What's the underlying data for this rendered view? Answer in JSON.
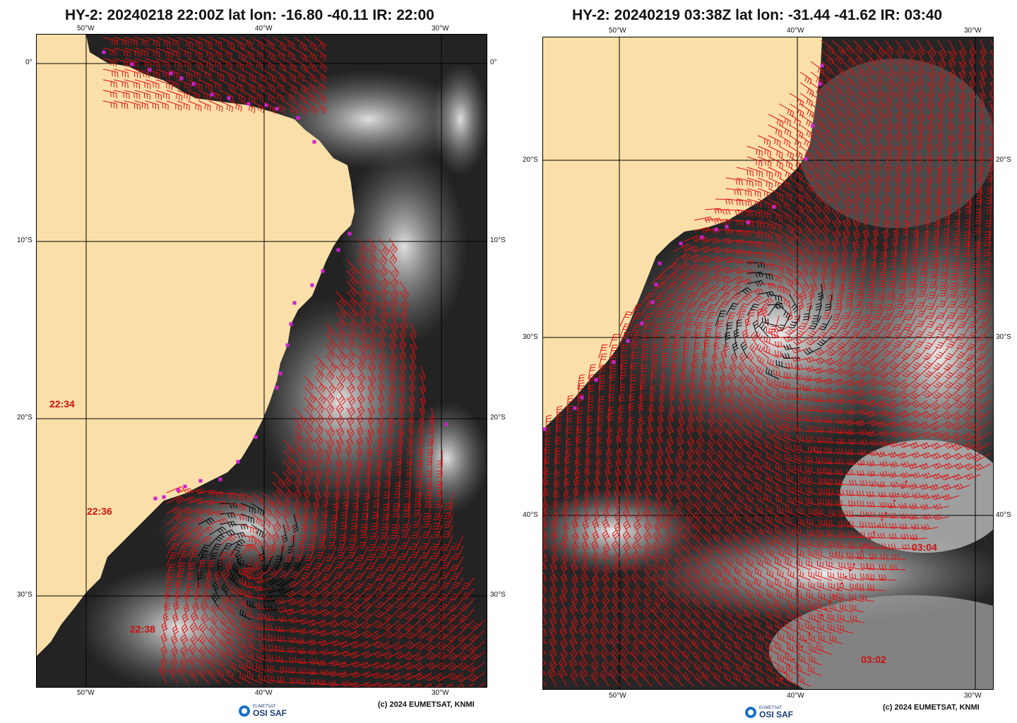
{
  "colors": {
    "land": "#fadfa8",
    "barb": "#e01010",
    "barb_rain": "#000000",
    "coast_marker": "#d020d0",
    "pass_time": "#cc1111"
  },
  "panels": [
    {
      "title": "HY-2: 20240218 22:00Z lat lon: -16.80 -40.11 IR: 22:00",
      "top_labels": [
        "50°W",
        "40°W",
        "30°W"
      ],
      "bottom_labels": [
        "50°W",
        "40°W",
        "30°W"
      ],
      "left_labels": [
        "0°",
        "10°S",
        "20°S",
        "30°S"
      ],
      "right_labels": [
        "0°",
        "10°S",
        "20°S",
        "30°S"
      ],
      "pass_times": [
        "22:34",
        "22:36",
        "22:38"
      ],
      "credit": "(c) 2024 EUMETSAT, KNMI",
      "logo": {
        "org": "EUMETSAT",
        "name": "OSI SAF"
      }
    },
    {
      "title": "HY-2: 20240219 03:38Z lat lon: -31.44 -41.62 IR: 03:40",
      "top_labels": [
        "50°W",
        "40°W",
        "30°W"
      ],
      "bottom_labels": [
        "50°W",
        "40°W",
        "30°W"
      ],
      "left_labels": [
        "20°S",
        "30°S",
        "40°S"
      ],
      "right_labels": [
        "20°S",
        "30°S",
        "40°S"
      ],
      "pass_times": [
        "03:04",
        "03:02"
      ],
      "credit": "(c) 2024 EUMETSAT, KNMI",
      "logo": {
        "org": "EUMETSAT",
        "name": "OSI SAF"
      }
    }
  ]
}
